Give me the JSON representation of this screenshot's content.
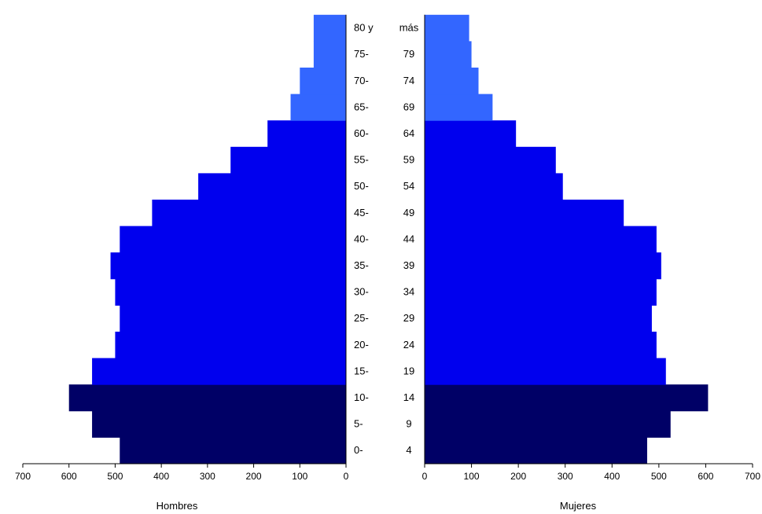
{
  "chart_data": {
    "type": "bar",
    "orientation": "horizontal",
    "chart_kind": "population-pyramid",
    "age_groups_left": [
      "0-",
      "5-",
      "10-",
      "15-",
      "20-",
      "25-",
      "30-",
      "35-",
      "40-",
      "45-",
      "50-",
      "55-",
      "60-",
      "65-",
      "70-",
      "75-",
      "80 y"
    ],
    "age_groups_right": [
      "4",
      "9",
      "14",
      "19",
      "24",
      "29",
      "34",
      "39",
      "44",
      "49",
      "54",
      "59",
      "64",
      "69",
      "74",
      "79",
      "más"
    ],
    "series": [
      {
        "name": "Hombres",
        "values": [
          490,
          550,
          600,
          550,
          500,
          490,
          500,
          510,
          490,
          420,
          320,
          250,
          170,
          120,
          100,
          70,
          70
        ]
      },
      {
        "name": "Mujeres",
        "values": [
          475,
          525,
          605,
          515,
          495,
          485,
          495,
          505,
          495,
          425,
          295,
          280,
          195,
          145,
          115,
          100,
          95
        ]
      }
    ],
    "band_colors": [
      "#000066",
      "#000066",
      "#000066",
      "#0000ee",
      "#0000ee",
      "#0000ee",
      "#0000ee",
      "#0000ee",
      "#0000ee",
      "#0000ee",
      "#0000ee",
      "#0000ee",
      "#0000ee",
      "#3366ff",
      "#3366ff",
      "#3366ff",
      "#3366ff"
    ],
    "xlim_left": [
      0,
      700
    ],
    "xlim_right": [
      0,
      700
    ],
    "xticks_left": [
      "700",
      "600",
      "500",
      "400",
      "300",
      "200",
      "100",
      "0"
    ],
    "xticks_right": [
      "0",
      "100",
      "200",
      "300",
      "400",
      "500",
      "600",
      "700"
    ],
    "xlabel_left": "Hombres",
    "xlabel_right": "Mujeres",
    "title": "",
    "grid": false,
    "legend": "none"
  }
}
